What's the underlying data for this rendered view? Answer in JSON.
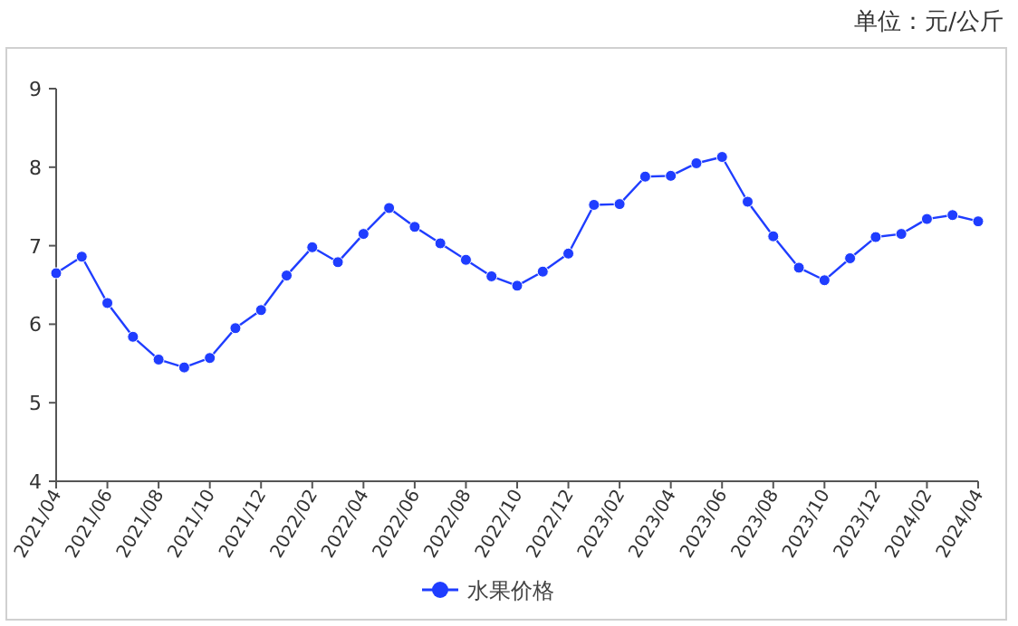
{
  "chart_data": {
    "type": "line",
    "categories": [
      "2021/04",
      null,
      "2021/06",
      null,
      "2021/08",
      null,
      "2021/10",
      null,
      "2021/12",
      null,
      "2022/02",
      null,
      "2022/04",
      null,
      "2022/06",
      null,
      "2022/08",
      null,
      "2022/10",
      null,
      "2022/12",
      null,
      "2023/02",
      null,
      "2023/04",
      null,
      "2023/06",
      null,
      "2023/08",
      null,
      "2023/10",
      null,
      "2023/12",
      null,
      "2024/02",
      null,
      "2024/04"
    ],
    "series": [
      {
        "name": "水果价格",
        "color": "#1f3dff",
        "values": [
          6.65,
          6.86,
          6.27,
          5.84,
          5.55,
          5.45,
          5.57,
          5.95,
          6.18,
          6.62,
          6.98,
          6.79,
          7.15,
          7.48,
          7.24,
          7.03,
          6.82,
          6.61,
          6.49,
          6.67,
          6.9,
          7.52,
          7.53,
          7.88,
          7.89,
          8.05,
          8.13,
          7.56,
          7.12,
          6.72,
          6.56,
          6.84,
          7.11,
          7.15,
          7.34,
          7.39,
          7.31
        ]
      }
    ],
    "ylim": [
      4,
      9
    ],
    "yticks": [
      4,
      5,
      6,
      7,
      8,
      9
    ],
    "grid": false,
    "legend": "bottom",
    "marker": "circle",
    "line_style": "solid",
    "annotations": [
      "单位：元/公斤"
    ]
  }
}
